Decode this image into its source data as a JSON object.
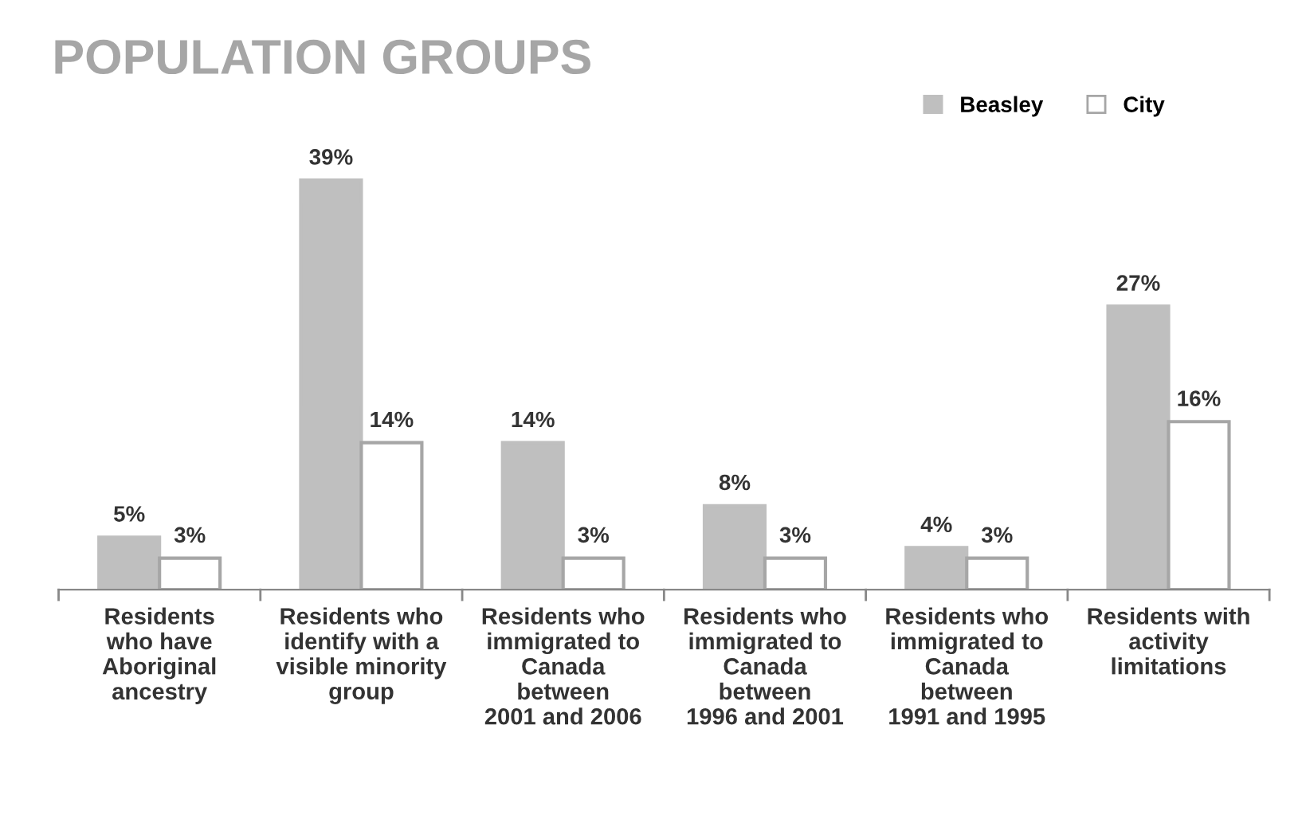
{
  "chart_data": {
    "type": "bar",
    "title": "POPULATION GROUPS",
    "categories": [
      "Residents\nwho have\nAboriginal\nancestry",
      "Residents who\nidentify with a\nvisible minority\ngroup",
      "Residents who\nimmigrated to\nCanada\nbetween\n2001 and 2006",
      "Residents who\nimmigrated to\nCanada\nbetween\n1996 and 2001",
      "Residents who\nimmigrated to\nCanada\nbetween\n1991 and 1995",
      "Residents with\nactivity\nlimitations"
    ],
    "series": [
      {
        "name": "Beasley",
        "color": "#bfbfbf",
        "values": [
          5,
          39,
          14,
          8,
          4,
          27
        ],
        "value_labels": [
          "5%",
          "39%",
          "14%",
          "8%",
          "4%",
          "27%"
        ]
      },
      {
        "name": "City",
        "color": "#ffffff",
        "values": [
          3,
          14,
          3,
          3,
          3,
          16
        ],
        "value_labels": [
          "3%",
          "14%",
          "3%",
          "3%",
          "3%",
          "16%"
        ]
      }
    ],
    "legend": "top right",
    "grid": false
  }
}
